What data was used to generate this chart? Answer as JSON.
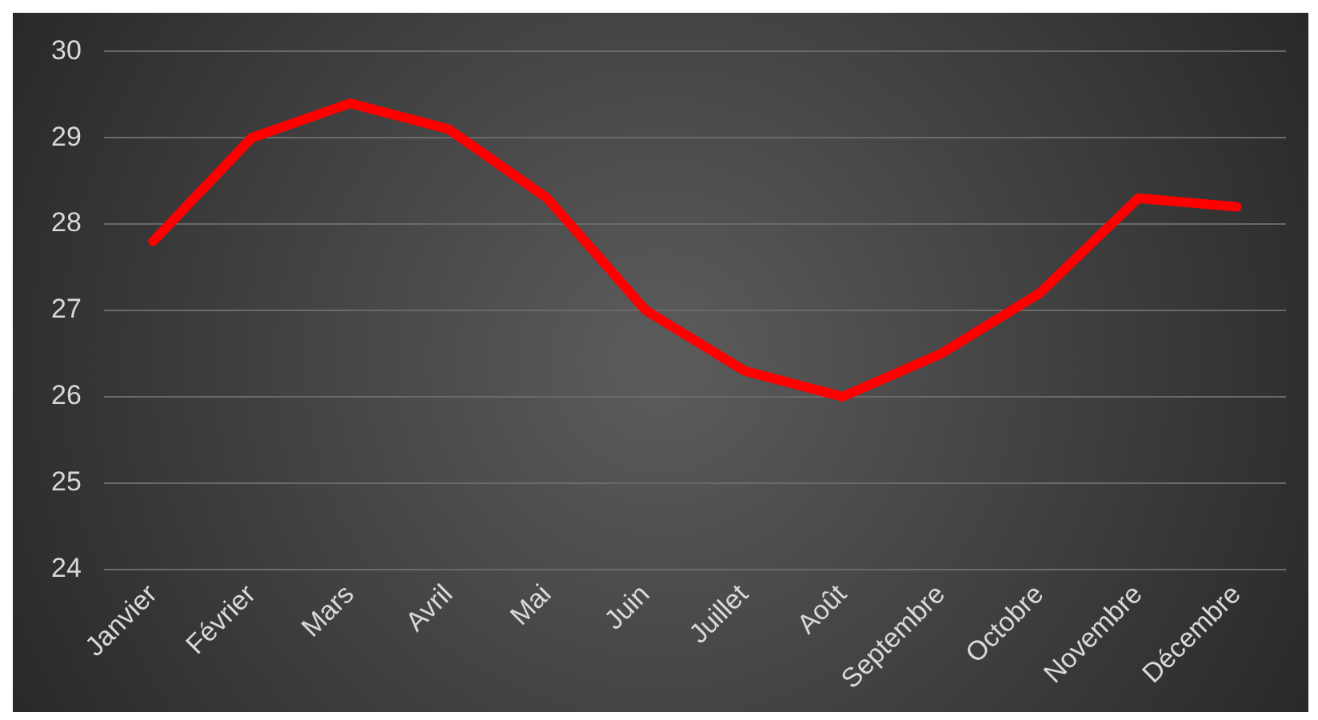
{
  "chart_data": {
    "type": "line",
    "categories": [
      "Janvier",
      "Février",
      "Mars",
      "Avril",
      "Mai",
      "Juin",
      "Juillet",
      "Août",
      "Septembre",
      "Octobre",
      "Novembre",
      "Décembre"
    ],
    "series": [
      {
        "color": "#ff0000",
        "values": [
          27.8,
          29.0,
          29.4,
          29.1,
          28.3,
          27.0,
          26.3,
          26.0,
          26.5,
          27.2,
          28.3,
          28.2
        ]
      }
    ],
    "ylim": [
      24,
      30
    ],
    "yticks": [
      24,
      25,
      26,
      27,
      28,
      29,
      30
    ],
    "grid": "y",
    "legend": false,
    "marker": "none",
    "line_style": "solid"
  }
}
